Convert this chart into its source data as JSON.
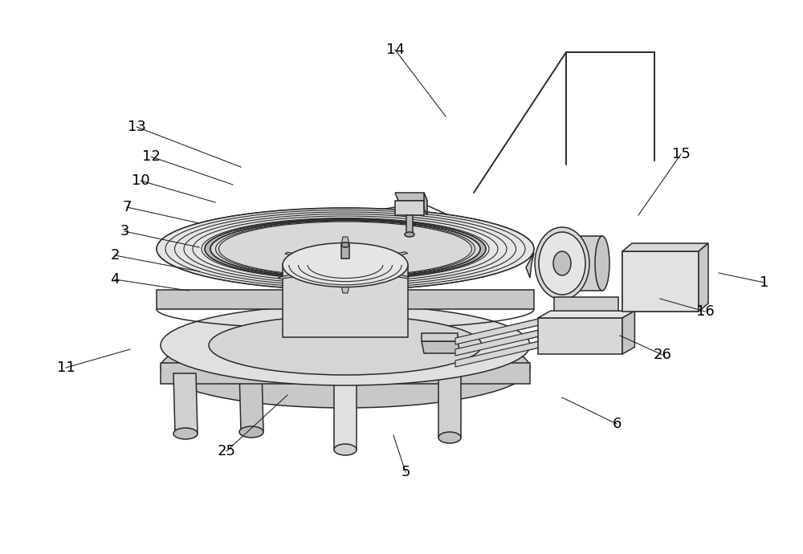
{
  "bg_color": "#ffffff",
  "line_color": "#2a2a2a",
  "fill_light": "#e8e8e8",
  "fill_mid": "#d0d0d0",
  "fill_dark": "#b8b8b8",
  "fill_white": "#f5f5f5",
  "label_color": "#000000",
  "label_fontsize": 13,
  "figsize": [
    10.0,
    6.9
  ],
  "dpi": 100,
  "labels": [
    [
      "1",
      952,
      352,
      895,
      340
    ],
    [
      "2",
      143,
      318,
      248,
      338
    ],
    [
      "3",
      155,
      288,
      248,
      308
    ],
    [
      "4",
      143,
      348,
      235,
      362
    ],
    [
      "5",
      505,
      588,
      490,
      542
    ],
    [
      "6",
      768,
      528,
      700,
      495
    ],
    [
      "7",
      158,
      258,
      248,
      278
    ],
    [
      "10",
      175,
      225,
      268,
      252
    ],
    [
      "11",
      82,
      458,
      162,
      435
    ],
    [
      "12",
      188,
      195,
      290,
      230
    ],
    [
      "13",
      170,
      158,
      300,
      208
    ],
    [
      "14",
      492,
      62,
      555,
      145
    ],
    [
      "15",
      848,
      192,
      795,
      268
    ],
    [
      "16",
      878,
      388,
      822,
      372
    ],
    [
      "25",
      282,
      562,
      358,
      492
    ],
    [
      "26",
      825,
      442,
      772,
      418
    ]
  ]
}
